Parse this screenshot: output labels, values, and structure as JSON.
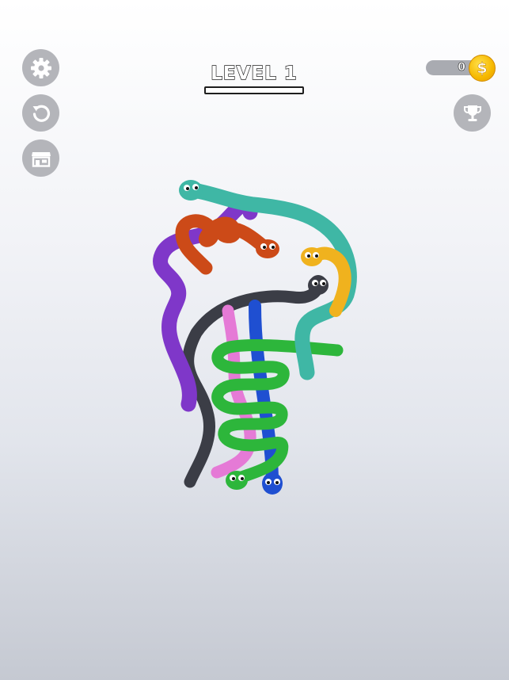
{
  "level": {
    "title": "LEVEL 1"
  },
  "coins": {
    "count": "0",
    "symbol": "$"
  },
  "buttons": {
    "settings": "gear-icon",
    "restart": "restart-icon",
    "shop": "shop-icon",
    "leaderboard": "trophy-icon"
  },
  "snakes": [
    {
      "name": "teal",
      "color": "#3fb7a5"
    },
    {
      "name": "purple",
      "color": "#7f37c9"
    },
    {
      "name": "orange",
      "color": "#cc4a18"
    },
    {
      "name": "yellow",
      "color": "#f0b21e"
    },
    {
      "name": "black",
      "color": "#3b3d46"
    },
    {
      "name": "pink",
      "color": "#e57ad6"
    },
    {
      "name": "blue",
      "color": "#1f4fd1"
    },
    {
      "name": "green",
      "color": "#2db63b"
    }
  ]
}
